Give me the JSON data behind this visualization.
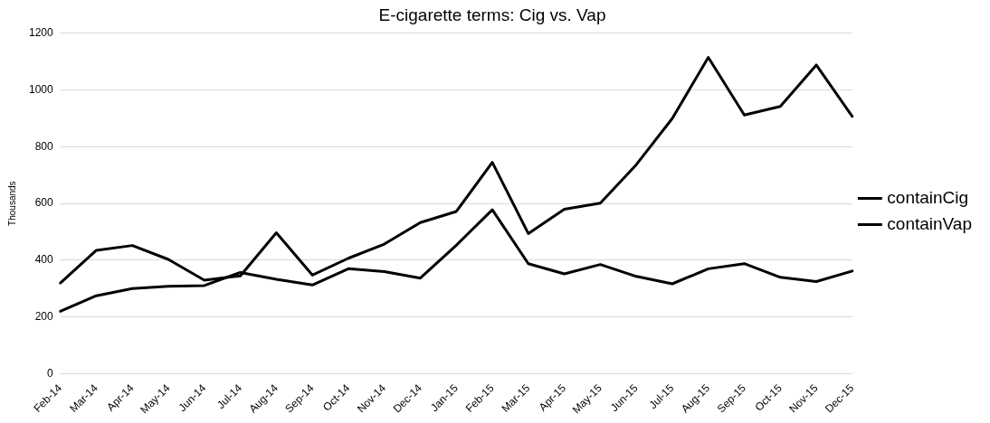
{
  "chart_data": {
    "type": "line",
    "title": "E-cigarette terms: Cig vs. Vap",
    "ylabel": "Thousands",
    "categories": [
      "Feb-14",
      "Mar-14",
      "Apr-14",
      "May-14",
      "Jun-14",
      "Jul-14",
      "Aug-14",
      "Sep-14",
      "Oct-14",
      "Nov-14",
      "Dec-14",
      "Jan-15",
      "Feb-15",
      "Mar-15",
      "Apr-15",
      "May-15",
      "Jun-15",
      "Jul-15",
      "Aug-15",
      "Sep-15",
      "Oct-15",
      "Nov-15",
      "Dec-15"
    ],
    "series": [
      {
        "name": "containCig",
        "color": "#000000",
        "values": [
          320,
          435,
          452,
          403,
          330,
          345,
          497,
          348,
          407,
          457,
          533,
          572,
          745,
          494,
          580,
          601,
          737,
          900,
          1115,
          912,
          942,
          1088,
          907
        ]
      },
      {
        "name": "containVap",
        "color": "#000000",
        "values": [
          220,
          275,
          300,
          308,
          311,
          357,
          333,
          313,
          370,
          360,
          337,
          453,
          578,
          388,
          352,
          385,
          343,
          317,
          370,
          388,
          340,
          325,
          362
        ]
      }
    ],
    "ylim": [
      0,
      1200
    ],
    "yticks": [
      0,
      200,
      400,
      600,
      800,
      1000,
      1200
    ],
    "grid": "y",
    "legend": "right",
    "marker": "none",
    "line_style": "solid"
  }
}
